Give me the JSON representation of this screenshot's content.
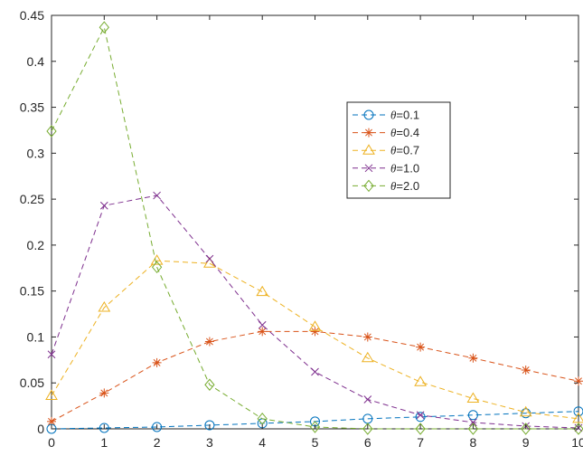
{
  "chart_data": {
    "type": "line",
    "title": "",
    "xlabel": "",
    "ylabel": "",
    "x": [
      0,
      1,
      2,
      3,
      4,
      5,
      6,
      7,
      8,
      9,
      10
    ],
    "xlim": [
      0,
      10
    ],
    "ylim": [
      0,
      0.45
    ],
    "x_ticks": [
      "0",
      "1",
      "2",
      "3",
      "4",
      "5",
      "6",
      "7",
      "8",
      "9",
      "10"
    ],
    "y_ticks": [
      "0",
      "0.05",
      "0.1",
      "0.15",
      "0.2",
      "0.25",
      "0.3",
      "0.35",
      "0.4",
      "0.45"
    ],
    "grid": false,
    "legend_position": "inside, upper-middle-right",
    "series": [
      {
        "name": "θ=0.1",
        "color": "#0072BD",
        "marker": "circle",
        "line_style": "dashed",
        "values": [
          0.0,
          0.001,
          0.002,
          0.004,
          0.006,
          0.008,
          0.011,
          0.013,
          0.015,
          0.017,
          0.019
        ]
      },
      {
        "name": "θ=0.4",
        "color": "#D95319",
        "marker": "asterisk",
        "line_style": "dashed",
        "values": [
          0.008,
          0.039,
          0.072,
          0.095,
          0.106,
          0.106,
          0.1,
          0.089,
          0.077,
          0.064,
          0.052
        ]
      },
      {
        "name": "θ=0.7",
        "color": "#EDB120",
        "marker": "triangle",
        "line_style": "dashed",
        "values": [
          0.036,
          0.132,
          0.183,
          0.18,
          0.149,
          0.111,
          0.077,
          0.051,
          0.033,
          0.018,
          0.011
        ]
      },
      {
        "name": "θ=1.0",
        "color": "#7E2F8E",
        "marker": "x",
        "line_style": "dashed",
        "values": [
          0.081,
          0.243,
          0.254,
          0.185,
          0.113,
          0.062,
          0.032,
          0.015,
          0.007,
          0.003,
          0.001
        ]
      },
      {
        "name": "θ=2.0",
        "color": "#77AC30",
        "marker": "diamond",
        "line_style": "dashed",
        "values": [
          0.324,
          0.437,
          0.176,
          0.048,
          0.011,
          0.002,
          0.0,
          0.0,
          0.0,
          0.0,
          0.0
        ]
      }
    ]
  }
}
